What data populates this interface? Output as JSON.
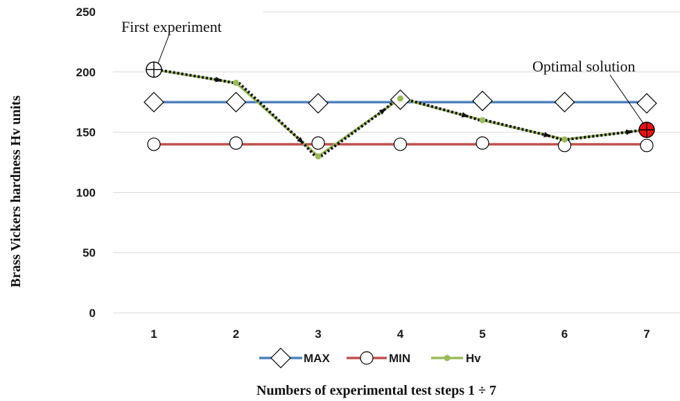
{
  "chart_data": {
    "type": "line",
    "categories": [
      "1",
      "2",
      "3",
      "4",
      "5",
      "6",
      "7"
    ],
    "series": [
      {
        "name": "MAX",
        "values": [
          175,
          175,
          175,
          175,
          175,
          175,
          175
        ],
        "color": "#4f81bd",
        "marker": "diamond"
      },
      {
        "name": "MIN",
        "values": [
          140,
          140,
          140,
          140,
          140,
          140,
          140
        ],
        "color": "#c0504d",
        "marker": "circle"
      },
      {
        "name": "Hv",
        "values": [
          202,
          191,
          130,
          178,
          160,
          144,
          152
        ],
        "color": "#9bbb59",
        "marker": "dot"
      }
    ],
    "marker_values": {
      "MAX": [
        175,
        175,
        174,
        177,
        176,
        175,
        174
      ],
      "MIN": [
        140,
        141,
        141,
        140,
        141,
        139,
        139
      ]
    },
    "xlabel": "Numbers of experimental test steps 1 ÷ 7",
    "ylabel": "Brass Vickers hardness Hv units",
    "ylim": [
      0,
      250
    ],
    "yticks": [
      "0",
      "50",
      "100",
      "150",
      "200",
      "250"
    ],
    "grid": true,
    "legend_position": "bottom",
    "annotations": [
      {
        "text": "First experiment",
        "category": "1",
        "value": 202
      },
      {
        "text": "Optimal solution",
        "category": "7",
        "value": 152
      }
    ],
    "search_path": {
      "style": "dotted arrows",
      "color": "#111111"
    },
    "highlight_color": "#ee1111"
  }
}
